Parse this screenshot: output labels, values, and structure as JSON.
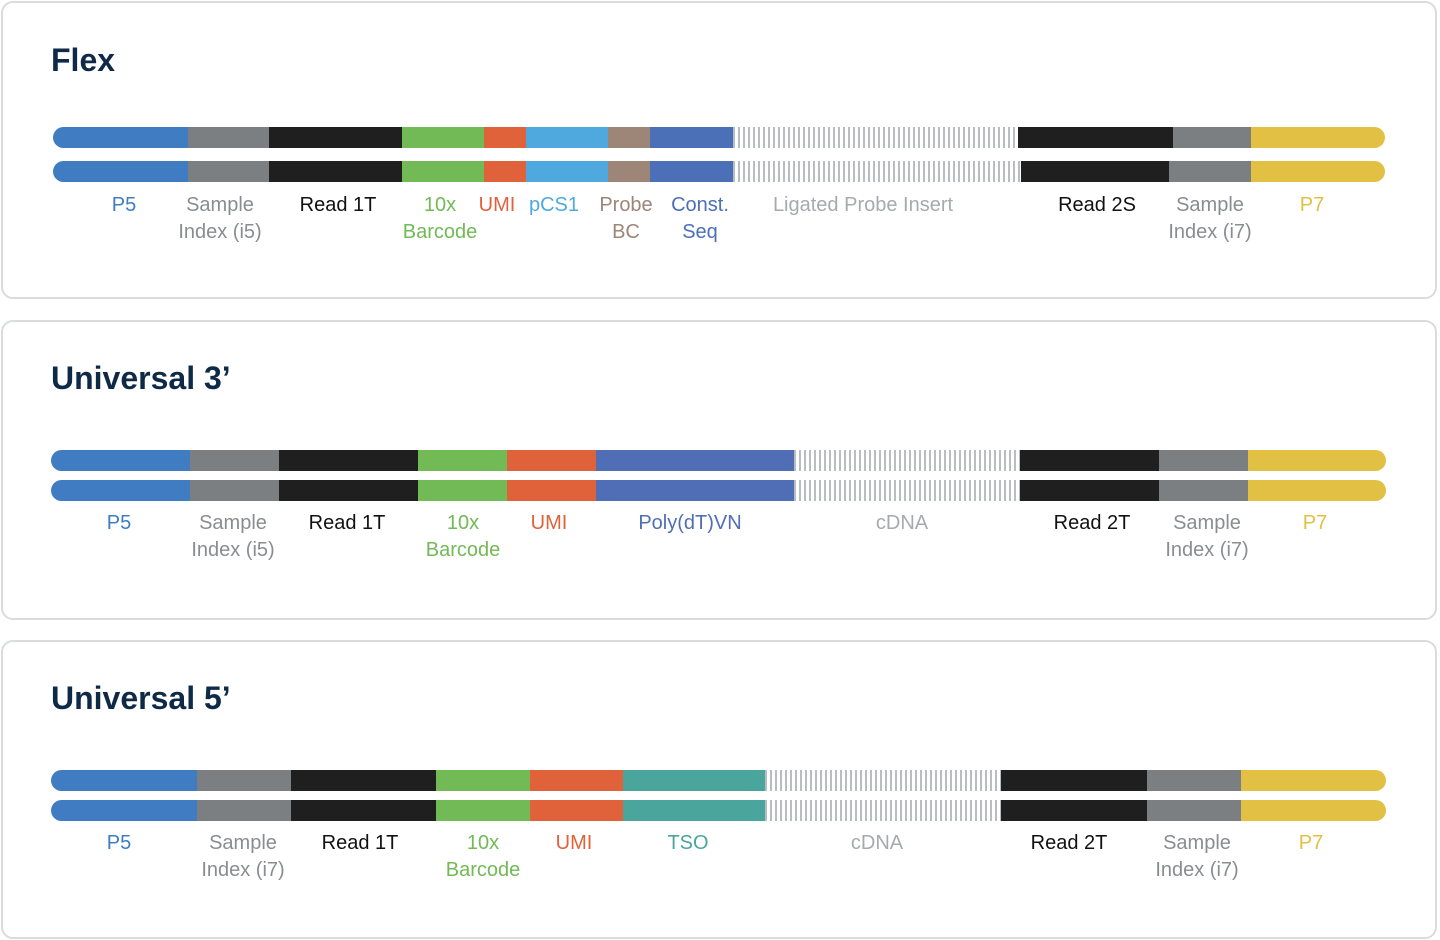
{
  "colors": {
    "P5": "#3f7cc1",
    "Sample Index": "#7c7f82",
    "Read": "#1f1f1f",
    "Barcode": "#72ba55",
    "UMI": "#e0623a",
    "pCS1": "#4fa9df",
    "Probe BC": "#9d8578",
    "Const": "#4b70b8",
    "PolydT": "#506eb6",
    "TSO": "#4aa69d",
    "P7": "#e2c043",
    "insert_label": "#a7aaad"
  },
  "panels": [
    {
      "id": "flex",
      "title": "Flex",
      "segments": [
        {
          "color": "P5",
          "label": [
            "P5"
          ]
        },
        {
          "color": "Sample Index",
          "label": [
            "Sample",
            "Index (i5)"
          ]
        },
        {
          "color": "Read",
          "label": [
            "Read 1T"
          ]
        },
        {
          "color": "Barcode",
          "label": [
            "10x",
            "Barcode"
          ]
        },
        {
          "color": "UMI",
          "label": [
            "UMI"
          ]
        },
        {
          "color": "pCS1",
          "label": [
            "pCS1"
          ]
        },
        {
          "color": "Probe BC",
          "label": [
            "Probe",
            "BC"
          ]
        },
        {
          "color": "Const",
          "label": [
            "Const.",
            "Seq"
          ]
        },
        {
          "color": "insert",
          "label": [
            "Ligated Probe Insert"
          ]
        },
        {
          "color": "Read",
          "label": [
            "Read 2S"
          ]
        },
        {
          "color": "Sample Index",
          "label": [
            "Sample",
            "Index (i7)"
          ]
        },
        {
          "color": "P7",
          "label": [
            "P7"
          ]
        }
      ]
    },
    {
      "id": "universal-3",
      "title": "Universal 3’",
      "segments": [
        {
          "color": "P5",
          "label": [
            "P5"
          ]
        },
        {
          "color": "Sample Index",
          "label": [
            "Sample",
            "Index (i5)"
          ]
        },
        {
          "color": "Read",
          "label": [
            "Read 1T"
          ]
        },
        {
          "color": "Barcode",
          "label": [
            "10x",
            "Barcode"
          ]
        },
        {
          "color": "UMI",
          "label": [
            "UMI"
          ]
        },
        {
          "color": "PolydT",
          "label": [
            "Poly(dT)VN"
          ]
        },
        {
          "color": "insert",
          "label": [
            "cDNA"
          ]
        },
        {
          "color": "Read",
          "label": [
            "Read 2T"
          ]
        },
        {
          "color": "Sample Index",
          "label": [
            "Sample",
            "Index (i7)"
          ]
        },
        {
          "color": "P7",
          "label": [
            "P7"
          ]
        }
      ]
    },
    {
      "id": "universal-5",
      "title": "Universal 5’",
      "segments": [
        {
          "color": "P5",
          "label": [
            "P5"
          ]
        },
        {
          "color": "Sample Index",
          "label": [
            "Sample",
            "Index (i7)"
          ]
        },
        {
          "color": "Read",
          "label": [
            "Read 1T"
          ]
        },
        {
          "color": "Barcode",
          "label": [
            "10x",
            "Barcode"
          ]
        },
        {
          "color": "UMI",
          "label": [
            "UMI"
          ]
        },
        {
          "color": "TSO",
          "label": [
            "TSO"
          ]
        },
        {
          "color": "insert",
          "label": [
            "cDNA"
          ]
        },
        {
          "color": "Read",
          "label": [
            "Read 2T"
          ]
        },
        {
          "color": "Sample Index",
          "label": [
            "Sample",
            "Index (i7)"
          ]
        },
        {
          "color": "P7",
          "label": [
            "P7"
          ]
        }
      ]
    }
  ]
}
